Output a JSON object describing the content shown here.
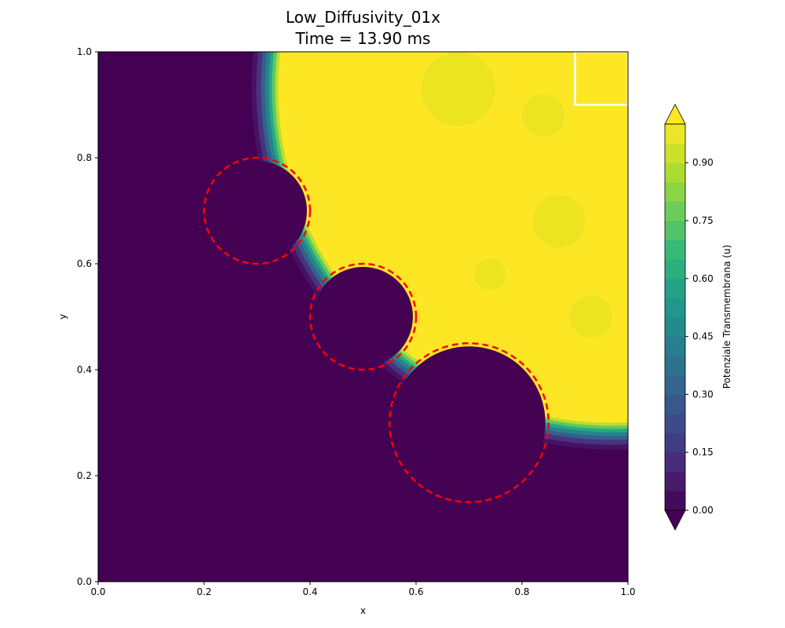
{
  "chart_data": {
    "type": "heatmap",
    "title": "Low_Diffusivity_01x",
    "subtitle": "Time = 13.90 ms",
    "xlabel": "x",
    "ylabel": "y",
    "xlim": [
      0.0,
      1.0
    ],
    "ylim": [
      0.0,
      1.0
    ],
    "x_ticks": [
      "0.0",
      "0.2",
      "0.4",
      "0.6",
      "0.8",
      "1.0"
    ],
    "y_ticks": [
      "0.0",
      "0.2",
      "0.4",
      "0.6",
      "0.8",
      "1.0"
    ],
    "grid": false,
    "colormap": "viridis",
    "colorbar": {
      "label": "Potenziale Transmembrana (u)",
      "range": [
        0.0,
        1.0
      ],
      "extend": "both",
      "levels": 20,
      "ticks": [
        "0.00",
        "0.15",
        "0.30",
        "0.45",
        "0.60",
        "0.75",
        "0.90"
      ],
      "tick_values": [
        0.0,
        0.15,
        0.3,
        0.45,
        0.6,
        0.75,
        0.9
      ]
    },
    "wavefront": {
      "description_values": "excited region (u near 1) in upper-right, resting region (u near 0) elsewhere",
      "center": [
        0.97,
        0.93
      ],
      "radius": 0.63
    },
    "obstacles": [
      {
        "cx": 0.3,
        "cy": 0.7,
        "r": 0.1
      },
      {
        "cx": 0.5,
        "cy": 0.5,
        "r": 0.1
      },
      {
        "cx": 0.7,
        "cy": 0.3,
        "r": 0.15
      }
    ],
    "highlight_box": {
      "x0": 0.9,
      "x1": 1.0,
      "y0": 0.9,
      "y1": 1.0
    },
    "colors": {
      "low": "#440154",
      "high": "#fde725",
      "obstacle_outline": "#ff0000",
      "box_outline": "#ffffff"
    }
  }
}
